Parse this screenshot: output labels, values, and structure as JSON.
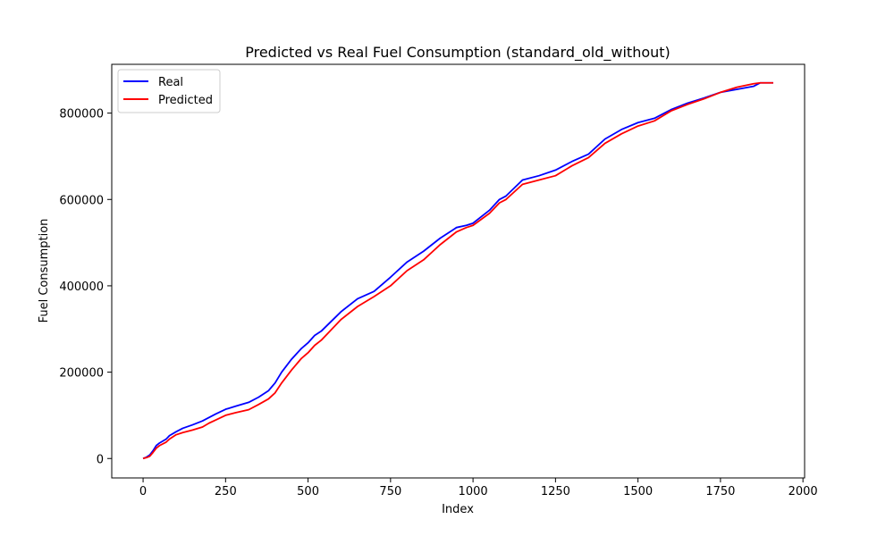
{
  "chart_data": {
    "type": "line",
    "title": "Predicted vs Real Fuel Consumption (standard_old_without)",
    "xlabel": "Index",
    "ylabel": "Fuel Consumption",
    "xlim": [
      -95,
      2005
    ],
    "ylim": [
      -45000,
      913000
    ],
    "xticks": [
      0,
      250,
      500,
      750,
      1000,
      1250,
      1500,
      1750,
      2000
    ],
    "yticks": [
      0,
      200000,
      400000,
      600000,
      800000
    ],
    "grid": false,
    "legend_position": "top-left",
    "series": [
      {
        "name": "Real",
        "color": "#0000ff",
        "x": [
          0,
          10,
          20,
          30,
          40,
          50,
          70,
          80,
          100,
          120,
          150,
          180,
          200,
          220,
          250,
          280,
          320,
          350,
          380,
          400,
          420,
          450,
          480,
          500,
          520,
          540,
          560,
          600,
          650,
          700,
          750,
          800,
          850,
          900,
          950,
          980,
          1000,
          1050,
          1080,
          1100,
          1150,
          1200,
          1250,
          1300,
          1350,
          1400,
          1450,
          1500,
          1550,
          1600,
          1650,
          1700,
          1750,
          1800,
          1850,
          1870,
          1910
        ],
        "y": [
          0,
          3000,
          8000,
          18000,
          30000,
          36000,
          45000,
          53000,
          62000,
          70000,
          78000,
          87000,
          95000,
          103000,
          114000,
          121000,
          130000,
          142000,
          157000,
          175000,
          200000,
          230000,
          255000,
          268000,
          285000,
          295000,
          310000,
          340000,
          370000,
          387000,
          420000,
          455000,
          480000,
          510000,
          535000,
          540000,
          545000,
          575000,
          600000,
          608000,
          645000,
          655000,
          668000,
          688000,
          705000,
          740000,
          762000,
          778000,
          788000,
          808000,
          823000,
          835000,
          848000,
          855000,
          862000,
          870000,
          870000
        ]
      },
      {
        "name": "Predicted",
        "color": "#ff0000",
        "x": [
          0,
          10,
          20,
          30,
          40,
          50,
          70,
          80,
          100,
          120,
          150,
          180,
          200,
          220,
          250,
          280,
          320,
          350,
          380,
          400,
          420,
          450,
          480,
          500,
          520,
          540,
          560,
          600,
          650,
          700,
          750,
          800,
          850,
          900,
          950,
          980,
          1000,
          1050,
          1080,
          1100,
          1150,
          1200,
          1250,
          1300,
          1350,
          1400,
          1450,
          1500,
          1550,
          1600,
          1650,
          1700,
          1750,
          1800,
          1850,
          1870,
          1910
        ],
        "y": [
          0,
          2000,
          5000,
          14000,
          24000,
          30000,
          38000,
          45000,
          55000,
          60000,
          66000,
          73000,
          82000,
          89000,
          100000,
          106000,
          113000,
          125000,
          138000,
          152000,
          175000,
          205000,
          232000,
          245000,
          262000,
          274000,
          290000,
          322000,
          352000,
          375000,
          400000,
          435000,
          460000,
          495000,
          525000,
          535000,
          540000,
          568000,
          592000,
          600000,
          635000,
          645000,
          655000,
          678000,
          697000,
          730000,
          752000,
          770000,
          782000,
          805000,
          820000,
          833000,
          848000,
          860000,
          868000,
          870000,
          870000
        ]
      }
    ]
  }
}
